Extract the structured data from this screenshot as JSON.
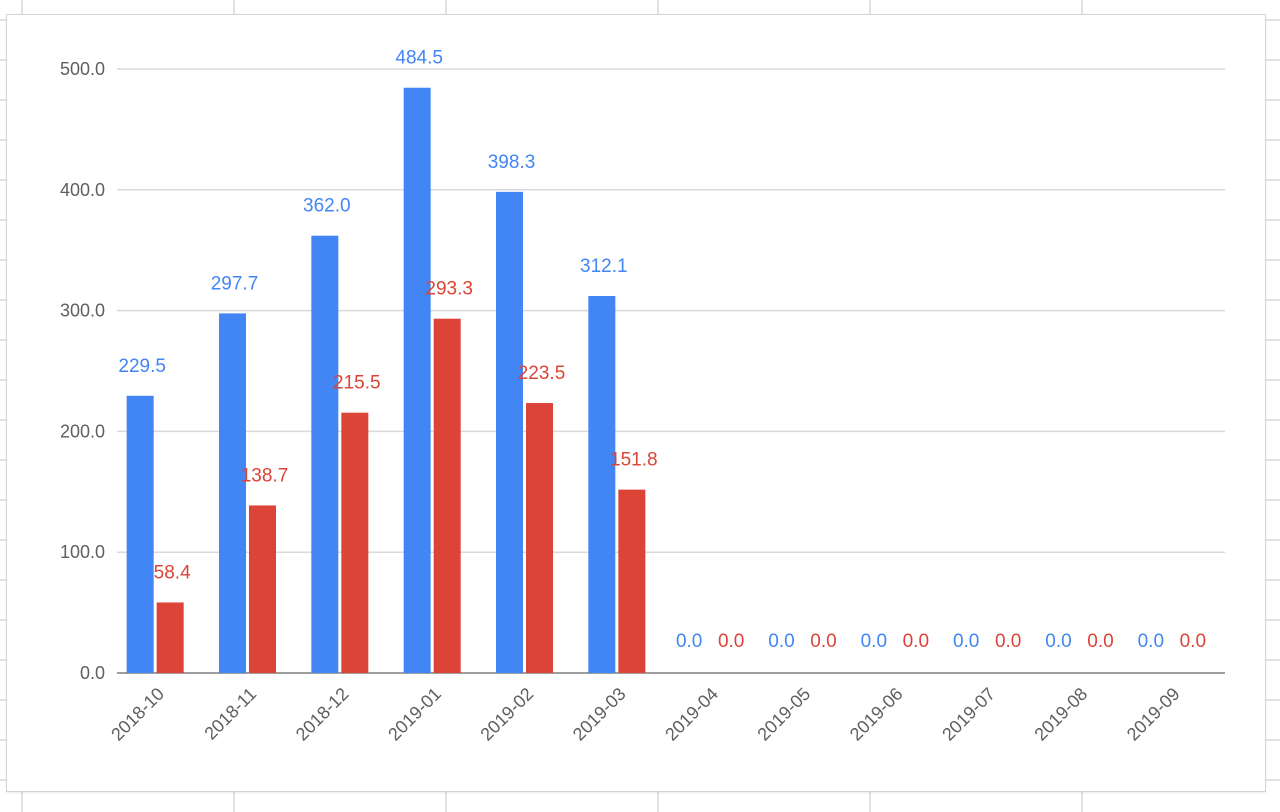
{
  "chart_data": {
    "type": "bar",
    "title": "",
    "xlabel": "",
    "ylabel": "",
    "ylim": [
      0,
      500
    ],
    "yticks": [
      "0.0",
      "100.0",
      "200.0",
      "300.0",
      "400.0",
      "500.0"
    ],
    "grid": true,
    "legend": "none",
    "categories": [
      "2018-10",
      "2018-11",
      "2018-12",
      "2019-01",
      "2019-02",
      "2019-03",
      "2019-04",
      "2019-05",
      "2019-06",
      "2019-07",
      "2019-08",
      "2019-09"
    ],
    "series": [
      {
        "color": "#4285f4",
        "values": [
          229.5,
          297.7,
          362.0,
          484.5,
          398.3,
          312.1,
          0.0,
          0.0,
          0.0,
          0.0,
          0.0,
          0.0
        ],
        "labels": [
          "229.5",
          "297.7",
          "362.0",
          "484.5",
          "398.3",
          "312.1",
          "0.0",
          "0.0",
          "0.0",
          "0.0",
          "0.0",
          "0.0"
        ]
      },
      {
        "color": "#db4437",
        "values": [
          58.4,
          138.7,
          215.5,
          293.3,
          223.5,
          151.8,
          0.0,
          0.0,
          0.0,
          0.0,
          0.0,
          0.0
        ],
        "labels": [
          "58.4",
          "138.7",
          "215.5",
          "293.3",
          "223.5",
          "151.8",
          "0.0",
          "0.0",
          "0.0",
          "0.0",
          "0.0",
          "0.0"
        ]
      }
    ]
  },
  "colors": {
    "gridline": "#d9d9d9",
    "baseline": "#9e9e9e",
    "tick_text": "#5f5f5f",
    "sheet_lines": "#e2e2e2"
  }
}
